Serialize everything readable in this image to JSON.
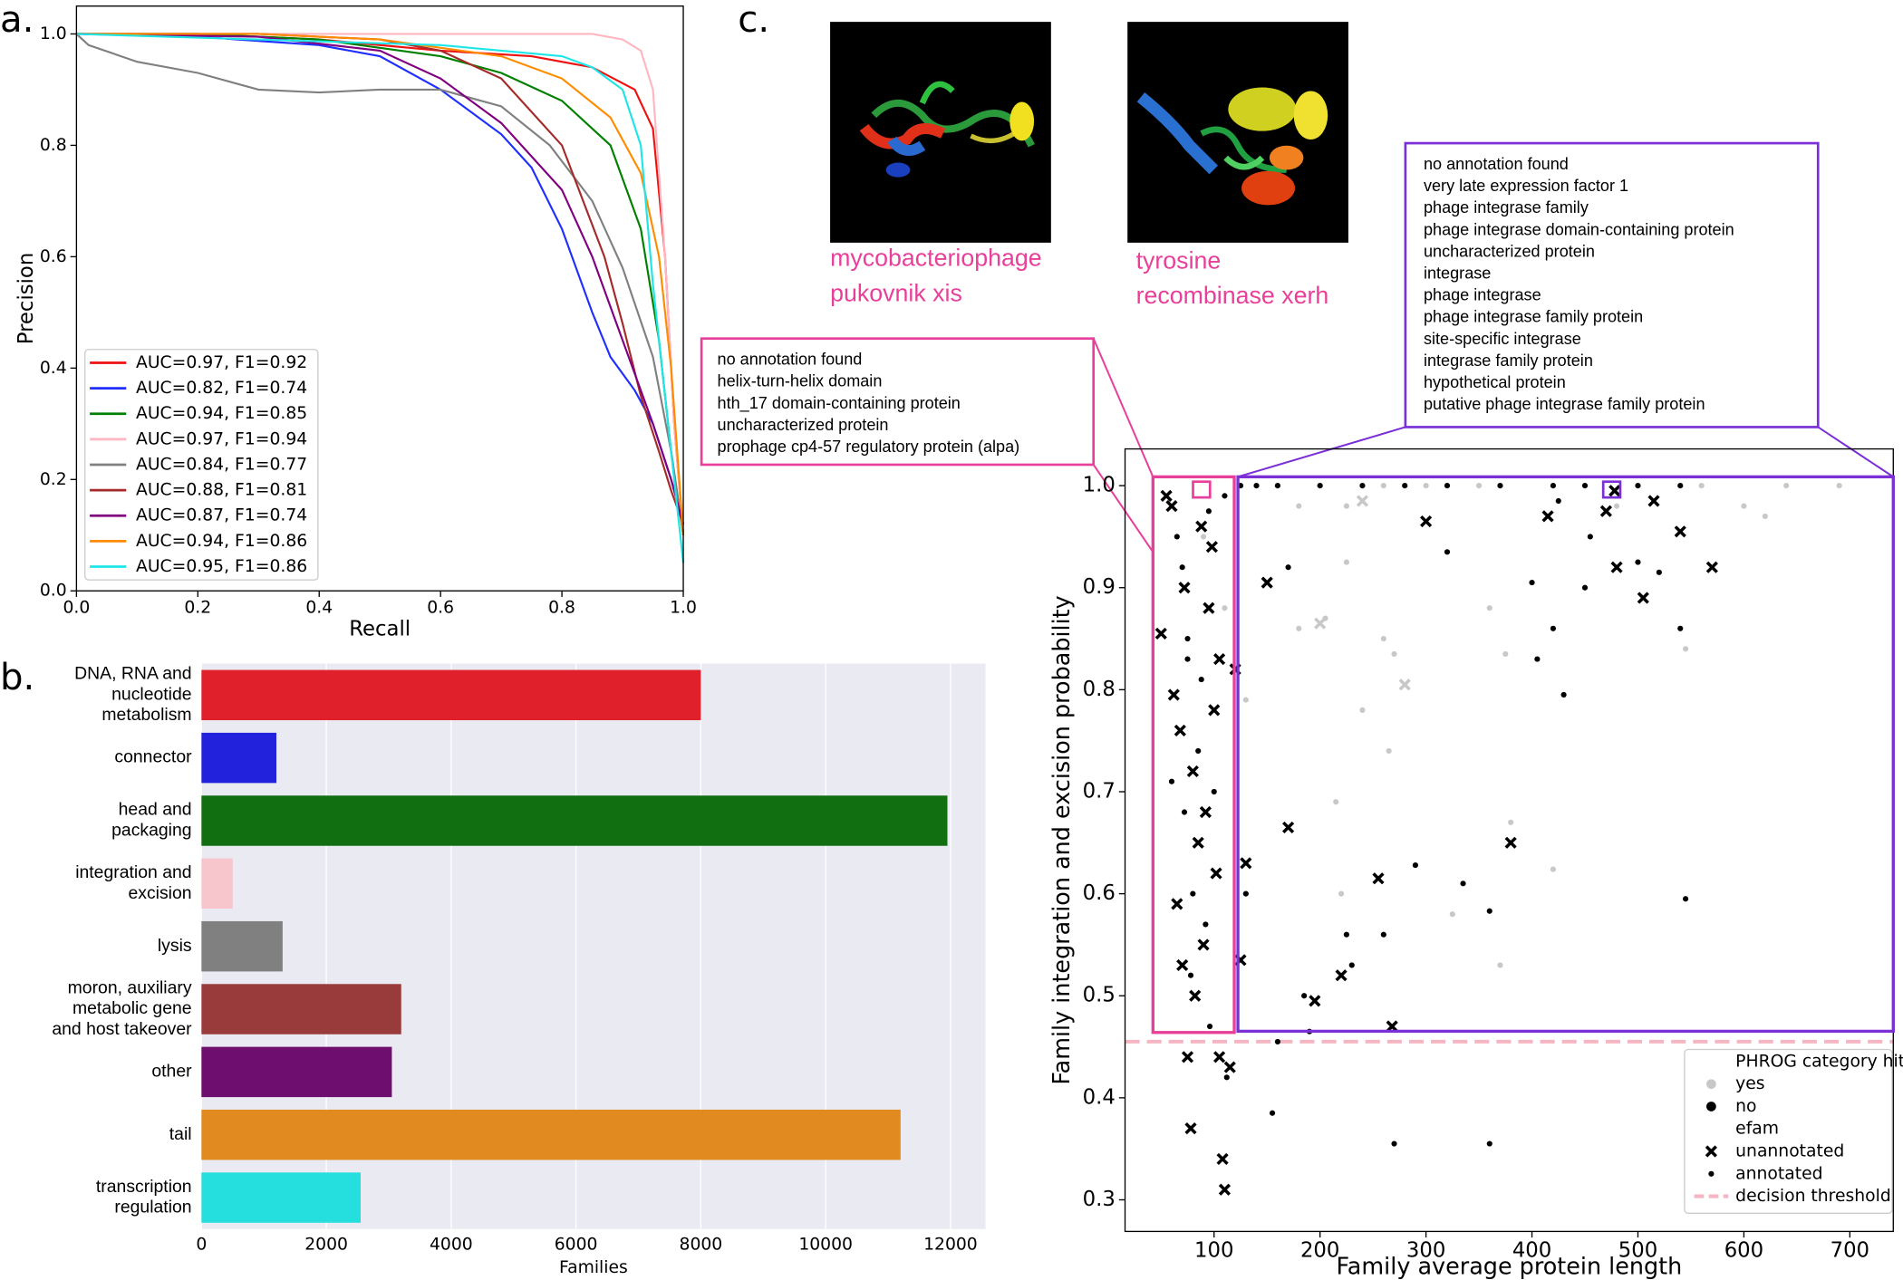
{
  "chart_data": [
    {
      "type": "line",
      "panel_label": "a.",
      "xlabel": "Recall",
      "ylabel": "Precision",
      "xlim": [
        0,
        1
      ],
      "ylim": [
        0,
        1.05
      ],
      "xticks": [
        {
          "value": 0,
          "label": "0.0"
        },
        0.2,
        0.4,
        0.6,
        0.8,
        {
          "value": 1,
          "label": "1.0"
        }
      ],
      "yticks": [
        {
          "value": 0,
          "label": "0.0"
        },
        0.2,
        0.4,
        0.6,
        0.8,
        {
          "value": 1,
          "label": "1.0"
        }
      ],
      "legend": "lower left",
      "series": [
        {
          "name": "AUC=0.97, F1=0.92",
          "color": "#ee1111",
          "x": [
            0,
            0.2,
            0.4,
            0.6,
            0.75,
            0.85,
            0.92,
            0.95,
            0.97,
            0.985,
            1.0
          ],
          "values": [
            1,
            1,
            0.99,
            0.97,
            0.96,
            0.94,
            0.9,
            0.83,
            0.6,
            0.3,
            0.1
          ]
        },
        {
          "name": "AUC=0.82, F1=0.74",
          "color": "#1f2fff",
          "x": [
            0,
            0.2,
            0.4,
            0.5,
            0.6,
            0.7,
            0.75,
            0.8,
            0.85,
            0.88,
            0.92,
            0.95,
            0.98,
            1.0
          ],
          "values": [
            1,
            0.995,
            0.98,
            0.96,
            0.9,
            0.82,
            0.76,
            0.65,
            0.5,
            0.42,
            0.36,
            0.3,
            0.2,
            0.12
          ]
        },
        {
          "name": "AUC=0.94, F1=0.85",
          "color": "#008000",
          "x": [
            0,
            0.2,
            0.4,
            0.6,
            0.7,
            0.8,
            0.88,
            0.93,
            0.96,
            0.98,
            1.0
          ],
          "values": [
            1,
            1,
            0.99,
            0.96,
            0.93,
            0.88,
            0.8,
            0.65,
            0.45,
            0.25,
            0.1
          ]
        },
        {
          "name": "AUC=0.97, F1=0.94",
          "color": "#ffb6c1",
          "x": [
            0,
            0.4,
            0.7,
            0.85,
            0.9,
            0.93,
            0.95,
            0.96,
            0.97,
            0.985,
            1.0
          ],
          "values": [
            1,
            1,
            1,
            1,
            0.99,
            0.97,
            0.9,
            0.75,
            0.6,
            0.3,
            0.1
          ]
        },
        {
          "name": "AUC=0.84, F1=0.77",
          "color": "#808080",
          "x": [
            0,
            0.02,
            0.1,
            0.2,
            0.3,
            0.4,
            0.5,
            0.6,
            0.7,
            0.78,
            0.85,
            0.9,
            0.95,
            0.98,
            1.0
          ],
          "values": [
            1,
            0.98,
            0.95,
            0.93,
            0.9,
            0.895,
            0.9,
            0.9,
            0.87,
            0.8,
            0.7,
            0.58,
            0.42,
            0.25,
            0.1
          ]
        },
        {
          "name": "AUC=0.88, F1=0.81",
          "color": "#a52a2a",
          "x": [
            0,
            0.3,
            0.5,
            0.6,
            0.7,
            0.8,
            0.87,
            0.9,
            0.93,
            0.96,
            0.98,
            1.0
          ],
          "values": [
            1,
            1,
            0.99,
            0.97,
            0.92,
            0.8,
            0.6,
            0.48,
            0.35,
            0.25,
            0.18,
            0.12
          ]
        },
        {
          "name": "AUC=0.87, F1=0.74",
          "color": "#800080",
          "x": [
            0,
            0.3,
            0.5,
            0.6,
            0.7,
            0.8,
            0.85,
            0.9,
            0.95,
            0.98,
            1.0
          ],
          "values": [
            1,
            0.995,
            0.97,
            0.92,
            0.84,
            0.72,
            0.6,
            0.45,
            0.3,
            0.2,
            0.12
          ]
        },
        {
          "name": "AUC=0.94, F1=0.86",
          "color": "#ff8c00",
          "x": [
            0,
            0.3,
            0.5,
            0.7,
            0.8,
            0.88,
            0.93,
            0.96,
            0.98,
            1.0
          ],
          "values": [
            1,
            1,
            0.99,
            0.96,
            0.92,
            0.85,
            0.75,
            0.6,
            0.4,
            0.1
          ]
        },
        {
          "name": "AUC=0.95, F1=0.86",
          "color": "#1fe6e6",
          "x": [
            0,
            0.3,
            0.6,
            0.7,
            0.8,
            0.85,
            0.9,
            0.93,
            0.95,
            0.97,
            1.0
          ],
          "values": [
            1,
            0.99,
            0.98,
            0.97,
            0.96,
            0.94,
            0.9,
            0.8,
            0.55,
            0.35,
            0.05
          ]
        }
      ]
    },
    {
      "type": "hbar",
      "panel_label": "b.",
      "xlabel": "Families",
      "grid": true,
      "xlim": [
        0,
        12560
      ],
      "xticks": [
        0,
        2000,
        4000,
        6000,
        8000,
        10000,
        12000
      ],
      "categories": [
        [
          "DNA, RNA and",
          "nucleotide",
          "metabolism"
        ],
        [
          "connector"
        ],
        [
          "head and",
          "packaging"
        ],
        [
          "integration and",
          "excision"
        ],
        [
          "lysis"
        ],
        [
          "moron, auxiliary",
          "metabolic gene",
          "and host takeover"
        ],
        [
          "other"
        ],
        [
          "tail"
        ],
        [
          "transcription",
          "regulation"
        ]
      ],
      "values": [
        8000,
        1200,
        11950,
        500,
        1300,
        3200,
        3050,
        11200,
        2550
      ],
      "colors": [
        "#e0202a",
        "#2222dd",
        "#116e11",
        "#f7c6cc",
        "#808080",
        "#9a3b3b",
        "#6e0e6e",
        "#e08a20",
        "#25dede"
      ]
    },
    {
      "type": "scatter",
      "panel_label": "c.",
      "xlabel": "Family average protein length",
      "ylabel": "Family integration and excision probability",
      "xlim": [
        16,
        741
      ],
      "ylim": [
        0.269,
        1.036
      ],
      "xticks": [
        100,
        200,
        300,
        400,
        500,
        600,
        700
      ],
      "yticks": [
        0.3,
        0.4,
        0.5,
        0.6,
        0.7,
        0.8,
        0.9,
        {
          "value": 1,
          "label": "1.0"
        }
      ],
      "threshold": {
        "value": 0.455,
        "label": "decision threshold",
        "color": "#f4b6c2"
      },
      "hue": {
        "title": "PHROG category hit",
        "levels": [
          "yes",
          "no"
        ],
        "colors": [
          "#c8c8c8",
          "#000000"
        ]
      },
      "style": {
        "title": "efam",
        "levels": [
          "unannotated",
          "annotated"
        ],
        "markers": [
          "x",
          "dot"
        ]
      },
      "points": {
        "x": [
          50,
          62,
          65,
          70,
          75,
          78,
          80,
          85,
          88,
          90,
          95,
          98,
          100,
          102,
          105,
          108,
          110,
          115,
          120,
          125,
          130,
          150,
          170,
          195,
          220,
          255,
          268,
          300,
          380,
          415,
          470,
          478,
          480,
          505,
          515,
          540,
          570,
          60,
          72,
          82,
          92,
          68,
          105,
          55,
          65,
          70,
          75,
          80,
          85,
          88,
          92,
          96,
          100,
          72,
          78,
          112,
          125,
          140,
          160,
          200,
          240,
          280,
          320,
          370,
          420,
          450,
          500,
          540,
          130,
          155,
          160,
          170,
          185,
          190,
          225,
          230,
          260,
          270,
          290,
          320,
          335,
          360,
          360,
          400,
          405,
          420,
          430,
          450,
          455,
          500,
          540,
          545,
          520,
          425,
          75,
          95,
          60,
          110,
          180,
          205,
          215,
          220,
          225,
          240,
          260,
          265,
          270,
          325,
          360,
          375,
          380,
          370,
          420,
          480,
          545,
          620,
          600,
          690,
          640,
          560,
          350,
          300,
          260,
          225,
          180,
          130,
          110,
          90,
          200,
          240,
          280
        ],
        "y": [
          0.855,
          0.795,
          0.59,
          0.53,
          0.44,
          0.37,
          0.72,
          0.65,
          0.96,
          0.55,
          0.88,
          0.94,
          0.78,
          0.62,
          0.44,
          0.34,
          0.31,
          0.43,
          0.82,
          0.535,
          0.63,
          0.905,
          0.665,
          0.495,
          0.52,
          0.615,
          0.47,
          0.965,
          0.65,
          0.97,
          0.975,
          0.995,
          0.92,
          0.89,
          0.985,
          0.955,
          0.92,
          0.98,
          0.9,
          0.5,
          0.68,
          0.76,
          0.83,
          0.99,
          0.95,
          0.92,
          0.85,
          0.6,
          0.74,
          0.81,
          0.57,
          0.47,
          0.7,
          0.68,
          0.52,
          0.42,
          1.0,
          1.0,
          1.0,
          1.0,
          1.0,
          1.0,
          1.0,
          1.0,
          1.0,
          1.0,
          1.0,
          1.0,
          0.6,
          0.385,
          0.455,
          0.92,
          0.5,
          0.465,
          0.56,
          0.53,
          0.56,
          0.355,
          0.628,
          0.935,
          0.61,
          0.583,
          0.355,
          0.905,
          0.83,
          0.86,
          0.795,
          0.9,
          0.95,
          0.925,
          0.86,
          0.595,
          0.915,
          0.985,
          0.83,
          0.975,
          0.71,
          0.99,
          0.86,
          0.87,
          0.69,
          0.6,
          0.98,
          0.78,
          0.85,
          0.74,
          0.835,
          0.58,
          0.88,
          0.835,
          0.67,
          0.53,
          0.624,
          0.98,
          0.84,
          0.97,
          0.98,
          1.0,
          1.0,
          1.0,
          1.0,
          1.0,
          1.0,
          0.925,
          0.98,
          0.79,
          0.88,
          0.95,
          0.865,
          0.985,
          0.805
        ],
        "phrog_hit": [
          "no",
          "no",
          "no",
          "no",
          "no",
          "no",
          "no",
          "no",
          "no",
          "no",
          "no",
          "no",
          "no",
          "no",
          "no",
          "no",
          "no",
          "no",
          "no",
          "no",
          "no",
          "no",
          "no",
          "no",
          "no",
          "no",
          "no",
          "no",
          "no",
          "no",
          "no",
          "no",
          "no",
          "no",
          "no",
          "no",
          "no",
          "no",
          "no",
          "no",
          "no",
          "no",
          "no",
          "no",
          "no",
          "no",
          "no",
          "no",
          "no",
          "no",
          "no",
          "no",
          "no",
          "no",
          "no",
          "no",
          "no",
          "no",
          "no",
          "no",
          "no",
          "no",
          "no",
          "no",
          "no",
          "no",
          "no",
          "no",
          "no",
          "no",
          "no",
          "no",
          "no",
          "no",
          "no",
          "no",
          "no",
          "no",
          "no",
          "no",
          "no",
          "no",
          "no",
          "no",
          "no",
          "no",
          "no",
          "no",
          "no",
          "no",
          "no",
          "no",
          "no",
          "no",
          "no",
          "no",
          "no",
          "no",
          "yes",
          "yes",
          "yes",
          "yes",
          "yes",
          "yes",
          "yes",
          "yes",
          "yes",
          "yes",
          "yes",
          "yes",
          "yes",
          "yes",
          "yes",
          "yes",
          "yes",
          "yes",
          "yes",
          "yes",
          "yes",
          "yes",
          "yes",
          "yes",
          "yes",
          "yes",
          "yes",
          "yes",
          "yes",
          "yes",
          "yes",
          "yes",
          "yes"
        ],
        "efam": [
          "unannotated",
          "unannotated",
          "unannotated",
          "unannotated",
          "unannotated",
          "unannotated",
          "unannotated",
          "unannotated",
          "unannotated",
          "unannotated",
          "unannotated",
          "unannotated",
          "unannotated",
          "unannotated",
          "unannotated",
          "unannotated",
          "unannotated",
          "unannotated",
          "unannotated",
          "unannotated",
          "unannotated",
          "unannotated",
          "unannotated",
          "unannotated",
          "unannotated",
          "unannotated",
          "unannotated",
          "unannotated",
          "unannotated",
          "unannotated",
          "unannotated",
          "unannotated",
          "unannotated",
          "unannotated",
          "unannotated",
          "unannotated",
          "unannotated",
          "unannotated",
          "unannotated",
          "unannotated",
          "unannotated",
          "unannotated",
          "unannotated",
          "unannotated",
          "annotated",
          "annotated",
          "annotated",
          "annotated",
          "annotated",
          "annotated",
          "annotated",
          "annotated",
          "annotated",
          "annotated",
          "annotated",
          "annotated",
          "annotated",
          "annotated",
          "annotated",
          "annotated",
          "annotated",
          "annotated",
          "annotated",
          "annotated",
          "annotated",
          "annotated",
          "annotated",
          "annotated",
          "annotated",
          "annotated",
          "annotated",
          "annotated",
          "annotated",
          "annotated",
          "annotated",
          "annotated",
          "annotated",
          "annotated",
          "annotated",
          "annotated",
          "annotated",
          "annotated",
          "annotated",
          "annotated",
          "annotated",
          "annotated",
          "annotated",
          "annotated",
          "annotated",
          "annotated",
          "annotated",
          "annotated",
          "annotated",
          "annotated",
          "annotated",
          "annotated",
          "annotated",
          "annotated",
          "annotated",
          "annotated",
          "annotated",
          "annotated",
          "annotated",
          "annotated",
          "annotated",
          "annotated",
          "annotated",
          "annotated",
          "annotated",
          "annotated",
          "annotated",
          "annotated",
          "annotated",
          "annotated",
          "annotated",
          "annotated",
          "annotated",
          "annotated",
          "annotated",
          "annotated",
          "annotated",
          "annotated",
          "annotated",
          "annotated",
          "annotated",
          "annotated",
          "annotated",
          "annotated",
          "unannotated",
          "unannotated",
          "unannotated"
        ]
      },
      "annotations": {
        "pink_box": [
          "no annotation found",
          "helix-turn-helix domain",
          "hth_17 domain-containing protein",
          "uncharacterized protein",
          "prophage cp4-57 regulatory protein (alpa)"
        ],
        "purple_box": [
          "no annotation found",
          "very late expression factor 1",
          "phage integrase family",
          "phage integrase domain-containing protein",
          "uncharacterized protein",
          "integrase",
          "phage integrase",
          "phage integrase family protein",
          "site-specific integrase",
          "integrase family protein",
          "hypothetical protein",
          "putative phage integrase family protein"
        ],
        "structures": [
          [
            "mycobacteriophage",
            "pukovnik xis"
          ],
          [
            "tyrosine",
            "recombinase xerh"
          ]
        ]
      }
    }
  ]
}
